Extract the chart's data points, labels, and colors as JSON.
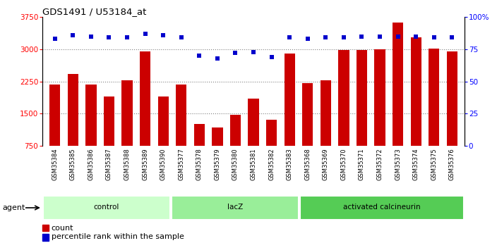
{
  "title": "GDS1491 / U53184_at",
  "samples": [
    "GSM35384",
    "GSM35385",
    "GSM35386",
    "GSM35387",
    "GSM35388",
    "GSM35389",
    "GSM35390",
    "GSM35377",
    "GSM35378",
    "GSM35379",
    "GSM35380",
    "GSM35381",
    "GSM35382",
    "GSM35383",
    "GSM35368",
    "GSM35369",
    "GSM35370",
    "GSM35371",
    "GSM35372",
    "GSM35373",
    "GSM35374",
    "GSM35375",
    "GSM35376"
  ],
  "counts": [
    2170,
    2420,
    2170,
    1900,
    2270,
    2950,
    1900,
    2170,
    1260,
    1180,
    1480,
    1850,
    1360,
    2900,
    2210,
    2280,
    2980,
    2980,
    3000,
    3620,
    3280,
    3020,
    2950
  ],
  "percentile": [
    83,
    86,
    85,
    84,
    84,
    87,
    86,
    84,
    70,
    68,
    72,
    73,
    69,
    84,
    83,
    84,
    84,
    85,
    85,
    85,
    85,
    84,
    84
  ],
  "groups": [
    {
      "label": "control",
      "start": 0,
      "end": 7,
      "color": "#ccffcc"
    },
    {
      "label": "lacZ",
      "start": 7,
      "end": 14,
      "color": "#99ee99"
    },
    {
      "label": "activated calcineurin",
      "start": 14,
      "end": 23,
      "color": "#55cc55"
    }
  ],
  "bar_color": "#cc0000",
  "dot_color": "#0000cc",
  "bar_bottom": 750,
  "ylim_left": [
    750,
    3750
  ],
  "ylim_right": [
    0,
    100
  ],
  "yticks_left": [
    750,
    1500,
    2250,
    3000,
    3750
  ],
  "yticks_right": [
    0,
    25,
    50,
    75,
    100
  ],
  "grid_values": [
    1500,
    2250,
    3000
  ],
  "agent_label": "agent",
  "legend_count": "count",
  "legend_pct": "percentile rank within the sample",
  "tick_bg_color": "#d0d0d0",
  "plot_bg_color": "#ffffff"
}
